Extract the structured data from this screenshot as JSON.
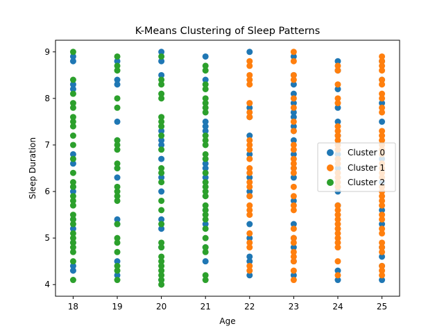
{
  "chart_data": {
    "type": "scatter",
    "title": "K-Means Clustering of Sleep Patterns",
    "xlabel": "Age",
    "ylabel": "Sleep Duration",
    "xlim": [
      17.6,
      25.4
    ],
    "ylim": [
      3.75,
      9.25
    ],
    "xticks": [
      18,
      19,
      20,
      21,
      22,
      23,
      24,
      25
    ],
    "yticks": [
      4,
      5,
      6,
      7,
      8,
      9
    ],
    "grid": false,
    "legend_position": "right",
    "series": [
      {
        "name": "Cluster 0",
        "color": "#1f77b4",
        "points": [
          [
            18,
            8.9
          ],
          [
            18,
            8.8
          ],
          [
            18,
            8.3
          ],
          [
            18,
            8.2
          ],
          [
            18,
            6.8
          ],
          [
            18,
            6.6
          ],
          [
            18,
            6.1
          ],
          [
            18,
            6.0
          ],
          [
            18,
            5.4
          ],
          [
            18,
            5.2
          ],
          [
            18,
            4.9
          ],
          [
            18,
            4.4
          ],
          [
            18,
            4.3
          ],
          [
            19,
            8.8
          ],
          [
            19,
            8.4
          ],
          [
            19,
            8.3
          ],
          [
            19,
            7.5
          ],
          [
            19,
            7.1
          ],
          [
            19,
            6.5
          ],
          [
            19,
            6.3
          ],
          [
            19,
            5.4
          ],
          [
            19,
            5.3
          ],
          [
            19,
            4.5
          ],
          [
            19,
            4.2
          ],
          [
            20,
            9.0
          ],
          [
            20,
            8.8
          ],
          [
            20,
            8.5
          ],
          [
            20,
            7.3
          ],
          [
            20,
            7.1
          ],
          [
            20,
            7.0
          ],
          [
            20,
            6.7
          ],
          [
            20,
            6.3
          ],
          [
            20,
            6.0
          ],
          [
            20,
            5.4
          ],
          [
            20,
            5.2
          ],
          [
            20,
            4.8
          ],
          [
            20,
            4.1
          ],
          [
            21,
            8.9
          ],
          [
            21,
            8.4
          ],
          [
            21,
            7.5
          ],
          [
            21,
            7.4
          ],
          [
            21,
            7.3
          ],
          [
            21,
            6.6
          ],
          [
            21,
            6.5
          ],
          [
            21,
            6.3
          ],
          [
            21,
            5.6
          ],
          [
            21,
            5.3
          ],
          [
            21,
            4.8
          ],
          [
            21,
            4.5
          ],
          [
            22,
            9.0
          ],
          [
            22,
            7.8
          ],
          [
            22,
            7.6
          ],
          [
            22,
            7.2
          ],
          [
            22,
            6.8
          ],
          [
            22,
            6.3
          ],
          [
            22,
            6.0
          ],
          [
            22,
            5.9
          ],
          [
            22,
            5.3
          ],
          [
            22,
            5.0
          ],
          [
            22,
            4.6
          ],
          [
            22,
            4.5
          ],
          [
            22,
            4.2
          ],
          [
            23,
            8.9
          ],
          [
            23,
            8.5
          ],
          [
            23,
            8.3
          ],
          [
            23,
            8.1
          ],
          [
            23,
            7.9
          ],
          [
            23,
            7.7
          ],
          [
            23,
            7.6
          ],
          [
            23,
            7.4
          ],
          [
            23,
            7.3
          ],
          [
            23,
            7.1
          ],
          [
            23,
            6.8
          ],
          [
            23,
            6.5
          ],
          [
            23,
            6.3
          ],
          [
            23,
            5.8
          ],
          [
            23,
            5.3
          ],
          [
            23,
            5.0
          ],
          [
            23,
            4.8
          ],
          [
            23,
            4.5
          ],
          [
            23,
            4.2
          ],
          [
            24,
            8.8
          ],
          [
            24,
            8.6
          ],
          [
            24,
            8.2
          ],
          [
            24,
            7.8
          ],
          [
            24,
            7.5
          ],
          [
            24,
            7.2
          ],
          [
            24,
            6.8
          ],
          [
            24,
            6.5
          ],
          [
            24,
            6.0
          ],
          [
            24,
            5.7
          ],
          [
            24,
            4.3
          ],
          [
            24,
            4.1
          ],
          [
            25,
            8.8
          ],
          [
            25,
            8.4
          ],
          [
            25,
            7.9
          ],
          [
            25,
            7.5
          ],
          [
            25,
            6.7
          ],
          [
            25,
            6.2
          ],
          [
            25,
            5.6
          ],
          [
            25,
            5.3
          ],
          [
            25,
            4.8
          ],
          [
            25,
            4.6
          ],
          [
            25,
            4.4
          ],
          [
            25,
            4.1
          ]
        ]
      },
      {
        "name": "Cluster 1",
        "color": "#ff7f0e",
        "points": [
          [
            22,
            8.8
          ],
          [
            22,
            8.7
          ],
          [
            22,
            8.5
          ],
          [
            22,
            8.4
          ],
          [
            22,
            8.3
          ],
          [
            22,
            7.9
          ],
          [
            22,
            7.7
          ],
          [
            22,
            7.6
          ],
          [
            22,
            7.1
          ],
          [
            22,
            7.0
          ],
          [
            22,
            6.9
          ],
          [
            22,
            6.7
          ],
          [
            22,
            6.5
          ],
          [
            22,
            6.4
          ],
          [
            22,
            6.2
          ],
          [
            22,
            6.1
          ],
          [
            22,
            5.9
          ],
          [
            22,
            5.7
          ],
          [
            22,
            5.6
          ],
          [
            22,
            5.5
          ],
          [
            22,
            5.1
          ],
          [
            22,
            4.9
          ],
          [
            22,
            4.8
          ],
          [
            22,
            4.4
          ],
          [
            22,
            4.3
          ],
          [
            23,
            9.0
          ],
          [
            23,
            8.8
          ],
          [
            23,
            8.5
          ],
          [
            23,
            8.4
          ],
          [
            23,
            8.0
          ],
          [
            23,
            7.8
          ],
          [
            23,
            7.5
          ],
          [
            23,
            7.3
          ],
          [
            23,
            7.0
          ],
          [
            23,
            6.9
          ],
          [
            23,
            6.7
          ],
          [
            23,
            6.6
          ],
          [
            23,
            6.5
          ],
          [
            23,
            6.4
          ],
          [
            23,
            6.1
          ],
          [
            23,
            5.9
          ],
          [
            23,
            5.7
          ],
          [
            23,
            5.6
          ],
          [
            23,
            5.2
          ],
          [
            23,
            5.0
          ],
          [
            23,
            4.9
          ],
          [
            23,
            4.7
          ],
          [
            23,
            4.6
          ],
          [
            23,
            4.5
          ],
          [
            23,
            4.3
          ],
          [
            23,
            4.1
          ],
          [
            24,
            8.7
          ],
          [
            24,
            8.6
          ],
          [
            24,
            8.3
          ],
          [
            24,
            8.0
          ],
          [
            24,
            7.9
          ],
          [
            24,
            7.4
          ],
          [
            24,
            7.3
          ],
          [
            24,
            7.2
          ],
          [
            24,
            7.1
          ],
          [
            24,
            7.0
          ],
          [
            24,
            6.9
          ],
          [
            24,
            6.7
          ],
          [
            24,
            6.6
          ],
          [
            24,
            6.4
          ],
          [
            24,
            6.3
          ],
          [
            24,
            6.2
          ],
          [
            24,
            6.1
          ],
          [
            24,
            5.7
          ],
          [
            24,
            5.6
          ],
          [
            24,
            5.5
          ],
          [
            24,
            5.4
          ],
          [
            24,
            5.3
          ],
          [
            24,
            5.2
          ],
          [
            24,
            5.1
          ],
          [
            24,
            5.0
          ],
          [
            24,
            4.9
          ],
          [
            24,
            4.8
          ],
          [
            24,
            4.5
          ],
          [
            24,
            4.2
          ],
          [
            25,
            8.9
          ],
          [
            25,
            8.8
          ],
          [
            25,
            8.7
          ],
          [
            25,
            8.6
          ],
          [
            25,
            8.4
          ],
          [
            25,
            8.3
          ],
          [
            25,
            8.1
          ],
          [
            25,
            8.0
          ],
          [
            25,
            7.8
          ],
          [
            25,
            7.7
          ],
          [
            25,
            7.3
          ],
          [
            25,
            7.2
          ],
          [
            25,
            7.1
          ],
          [
            25,
            7.0
          ],
          [
            25,
            6.9
          ],
          [
            25,
            6.8
          ],
          [
            25,
            6.6
          ],
          [
            25,
            6.5
          ],
          [
            25,
            6.4
          ],
          [
            25,
            6.3
          ],
          [
            25,
            6.1
          ],
          [
            25,
            6.0
          ],
          [
            25,
            5.9
          ],
          [
            25,
            5.8
          ],
          [
            25,
            5.7
          ],
          [
            25,
            5.5
          ],
          [
            25,
            5.4
          ],
          [
            25,
            5.2
          ],
          [
            25,
            5.1
          ],
          [
            25,
            4.9
          ],
          [
            25,
            4.8
          ],
          [
            25,
            4.7
          ],
          [
            25,
            4.4
          ],
          [
            25,
            4.3
          ],
          [
            25,
            4.2
          ]
        ]
      },
      {
        "name": "Cluster 2",
        "color": "#2ca02c",
        "points": [
          [
            18,
            9.0
          ],
          [
            18,
            8.4
          ],
          [
            18,
            8.1
          ],
          [
            18,
            7.9
          ],
          [
            18,
            7.8
          ],
          [
            18,
            7.6
          ],
          [
            18,
            7.5
          ],
          [
            18,
            7.4
          ],
          [
            18,
            7.2
          ],
          [
            18,
            7.0
          ],
          [
            18,
            6.7
          ],
          [
            18,
            6.4
          ],
          [
            18,
            6.2
          ],
          [
            18,
            6.1
          ],
          [
            18,
            5.9
          ],
          [
            18,
            5.8
          ],
          [
            18,
            5.7
          ],
          [
            18,
            5.5
          ],
          [
            18,
            5.4
          ],
          [
            18,
            5.3
          ],
          [
            18,
            5.1
          ],
          [
            18,
            5.0
          ],
          [
            18,
            4.9
          ],
          [
            18,
            4.8
          ],
          [
            18,
            4.7
          ],
          [
            18,
            4.5
          ],
          [
            18,
            4.1
          ],
          [
            19,
            8.9
          ],
          [
            19,
            8.7
          ],
          [
            19,
            8.6
          ],
          [
            19,
            8.0
          ],
          [
            19,
            7.8
          ],
          [
            19,
            7.1
          ],
          [
            19,
            7.0
          ],
          [
            19,
            6.9
          ],
          [
            19,
            6.6
          ],
          [
            19,
            6.5
          ],
          [
            19,
            6.1
          ],
          [
            19,
            6.0
          ],
          [
            19,
            5.9
          ],
          [
            19,
            5.8
          ],
          [
            19,
            5.3
          ],
          [
            19,
            5.0
          ],
          [
            19,
            4.9
          ],
          [
            19,
            4.7
          ],
          [
            19,
            4.4
          ],
          [
            19,
            4.3
          ],
          [
            19,
            4.1
          ],
          [
            20,
            8.9
          ],
          [
            20,
            8.4
          ],
          [
            20,
            8.3
          ],
          [
            20,
            8.1
          ],
          [
            20,
            8.0
          ],
          [
            20,
            7.6
          ],
          [
            20,
            7.5
          ],
          [
            20,
            7.4
          ],
          [
            20,
            7.2
          ],
          [
            20,
            6.9
          ],
          [
            20,
            6.5
          ],
          [
            20,
            6.4
          ],
          [
            20,
            6.2
          ],
          [
            20,
            5.8
          ],
          [
            20,
            5.6
          ],
          [
            20,
            5.3
          ],
          [
            20,
            4.9
          ],
          [
            20,
            4.8
          ],
          [
            20,
            4.6
          ],
          [
            20,
            4.5
          ],
          [
            20,
            4.4
          ],
          [
            20,
            4.3
          ],
          [
            20,
            4.2
          ],
          [
            20,
            4.1
          ],
          [
            20,
            4.0
          ],
          [
            21,
            8.7
          ],
          [
            21,
            8.6
          ],
          [
            21,
            8.3
          ],
          [
            21,
            8.2
          ],
          [
            21,
            8.0
          ],
          [
            21,
            7.9
          ],
          [
            21,
            7.8
          ],
          [
            21,
            7.7
          ],
          [
            21,
            7.2
          ],
          [
            21,
            7.1
          ],
          [
            21,
            7.0
          ],
          [
            21,
            6.8
          ],
          [
            21,
            6.7
          ],
          [
            21,
            6.4
          ],
          [
            21,
            6.2
          ],
          [
            21,
            6.1
          ],
          [
            21,
            6.0
          ],
          [
            21,
            5.9
          ],
          [
            21,
            5.7
          ],
          [
            21,
            5.6
          ],
          [
            21,
            5.5
          ],
          [
            21,
            5.4
          ],
          [
            21,
            5.2
          ],
          [
            21,
            5.0
          ],
          [
            21,
            4.8
          ],
          [
            21,
            4.7
          ],
          [
            21,
            4.2
          ],
          [
            21,
            4.1
          ]
        ]
      }
    ]
  }
}
